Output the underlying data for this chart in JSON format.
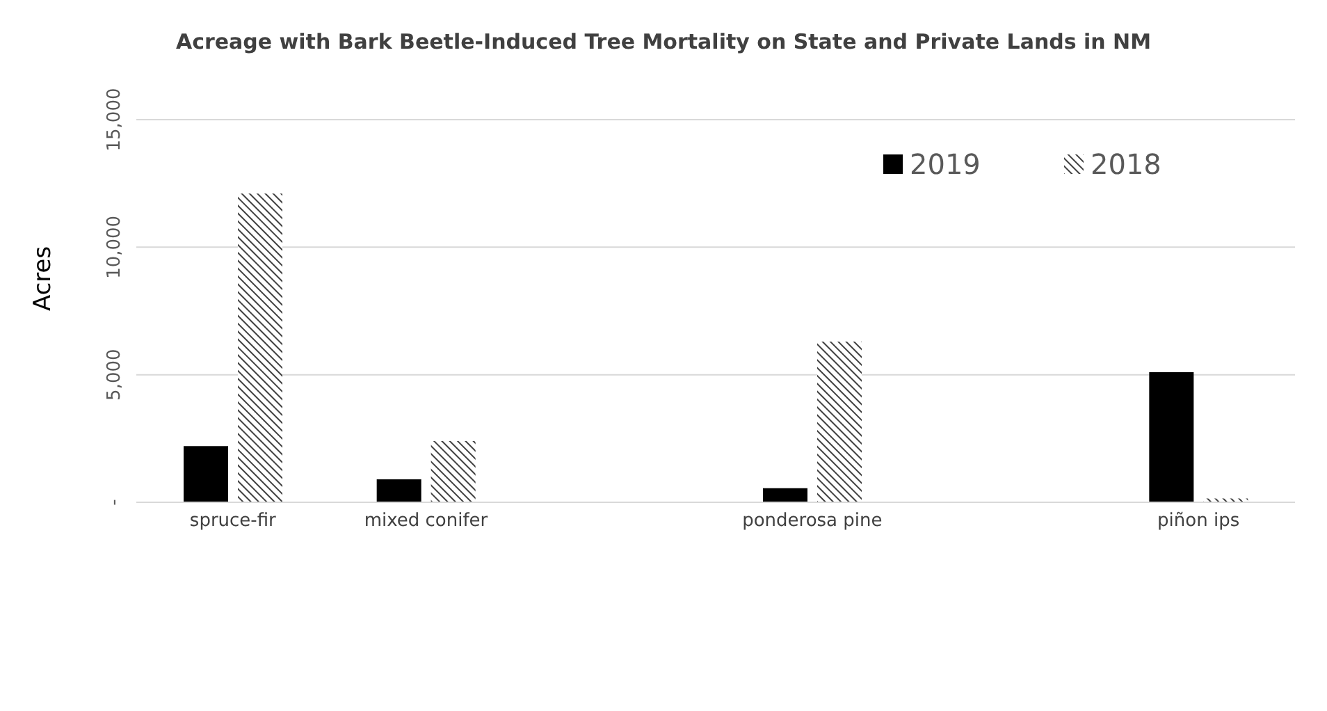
{
  "chart_data": {
    "type": "bar",
    "title": "Acreage with Bark Beetle-Induced Tree Mortality on State and Private Lands in NM",
    "ylabel": "Acres",
    "categories": [
      "spruce-fir",
      "mixed conifer",
      null,
      "ponderosa pine",
      null,
      "piñon ips"
    ],
    "series": [
      {
        "name": "2019",
        "color": "#000000",
        "values": [
          2200,
          900,
          null,
          550,
          null,
          5100
        ]
      },
      {
        "name": "2018",
        "color": "#404040",
        "values": [
          12100,
          2400,
          null,
          6300,
          null,
          150
        ]
      }
    ],
    "ylim": [
      0,
      15000
    ],
    "yticks": [
      {
        "value": 0,
        "label": "-"
      },
      {
        "value": 5000,
        "label": "5,000"
      },
      {
        "value": 10000,
        "label": "10,000"
      },
      {
        "value": 15000,
        "label": "15,000"
      }
    ],
    "grid": "y",
    "legend": "top right"
  }
}
